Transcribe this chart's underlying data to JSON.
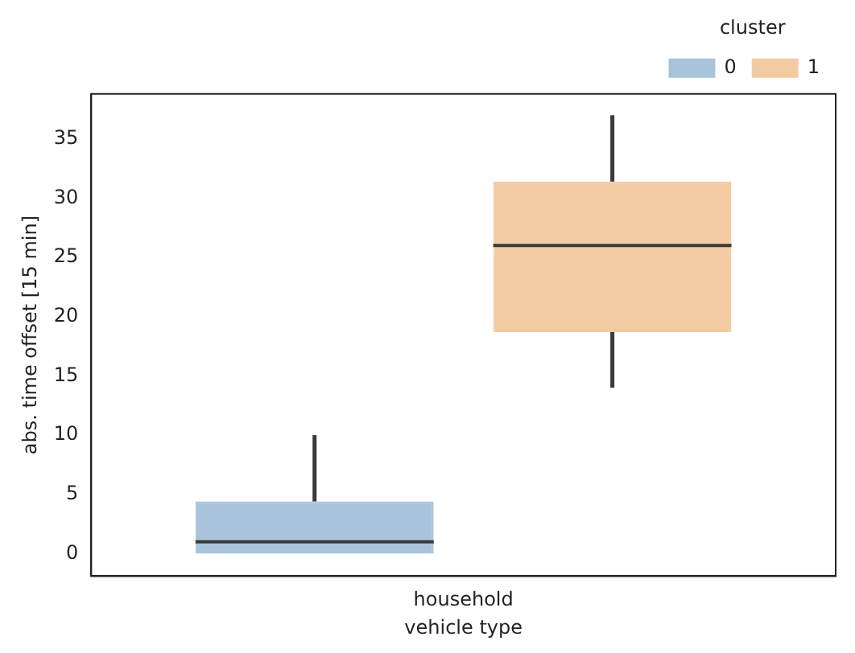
{
  "chart_data": {
    "type": "box",
    "xlabel": "vehicle type",
    "ylabel": "abs. time offset [15 min]",
    "legend_title": "cluster",
    "categories": [
      "household"
    ],
    "series": [
      {
        "name": "0",
        "color": "#a9c3da",
        "boxes": [
          {
            "low": 0,
            "q1": 0,
            "median": 1,
            "q3": 4.4,
            "high": 10
          }
        ]
      },
      {
        "name": "1",
        "color": "#f3caa2",
        "boxes": [
          {
            "low": 14,
            "q1": 18.7,
            "median": 26,
            "q3": 31.4,
            "high": 37
          }
        ]
      }
    ],
    "ylim": [
      -1.9,
      38.8
    ],
    "yticks": [
      0,
      5,
      10,
      15,
      20,
      25,
      30,
      35
    ],
    "grid": false,
    "legend": "top right"
  }
}
